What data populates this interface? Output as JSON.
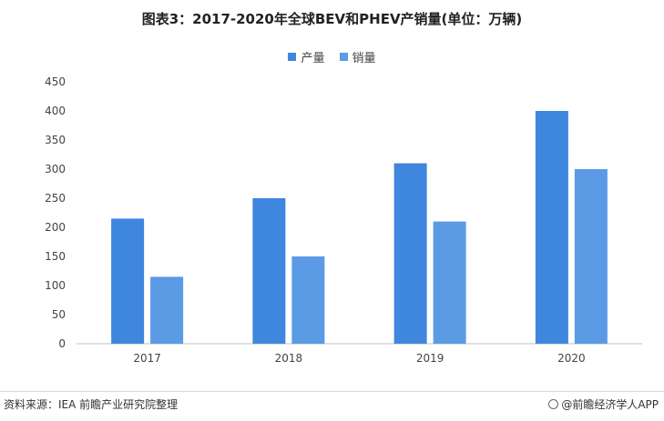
{
  "chart_data": {
    "type": "bar",
    "title": "图表3：2017-2020年全球BEV和PHEV产销量(单位：万辆)",
    "categories": [
      "2017",
      "2018",
      "2019",
      "2020"
    ],
    "series": [
      {
        "name": "产量",
        "values": [
          215,
          250,
          310,
          400
        ],
        "color": "#3f86de"
      },
      {
        "name": "销量",
        "values": [
          115,
          150,
          210,
          300
        ],
        "color": "#5b9be6"
      }
    ],
    "ylim": [
      0,
      450
    ],
    "yticks": [
      0,
      50,
      100,
      150,
      200,
      250,
      300,
      350,
      400,
      450
    ],
    "legend_position": "top-center",
    "grid": false
  },
  "footer": {
    "source": "资料来源：IEA 前瞻产业研究院整理",
    "brand": "@前瞻经济学人APP"
  }
}
